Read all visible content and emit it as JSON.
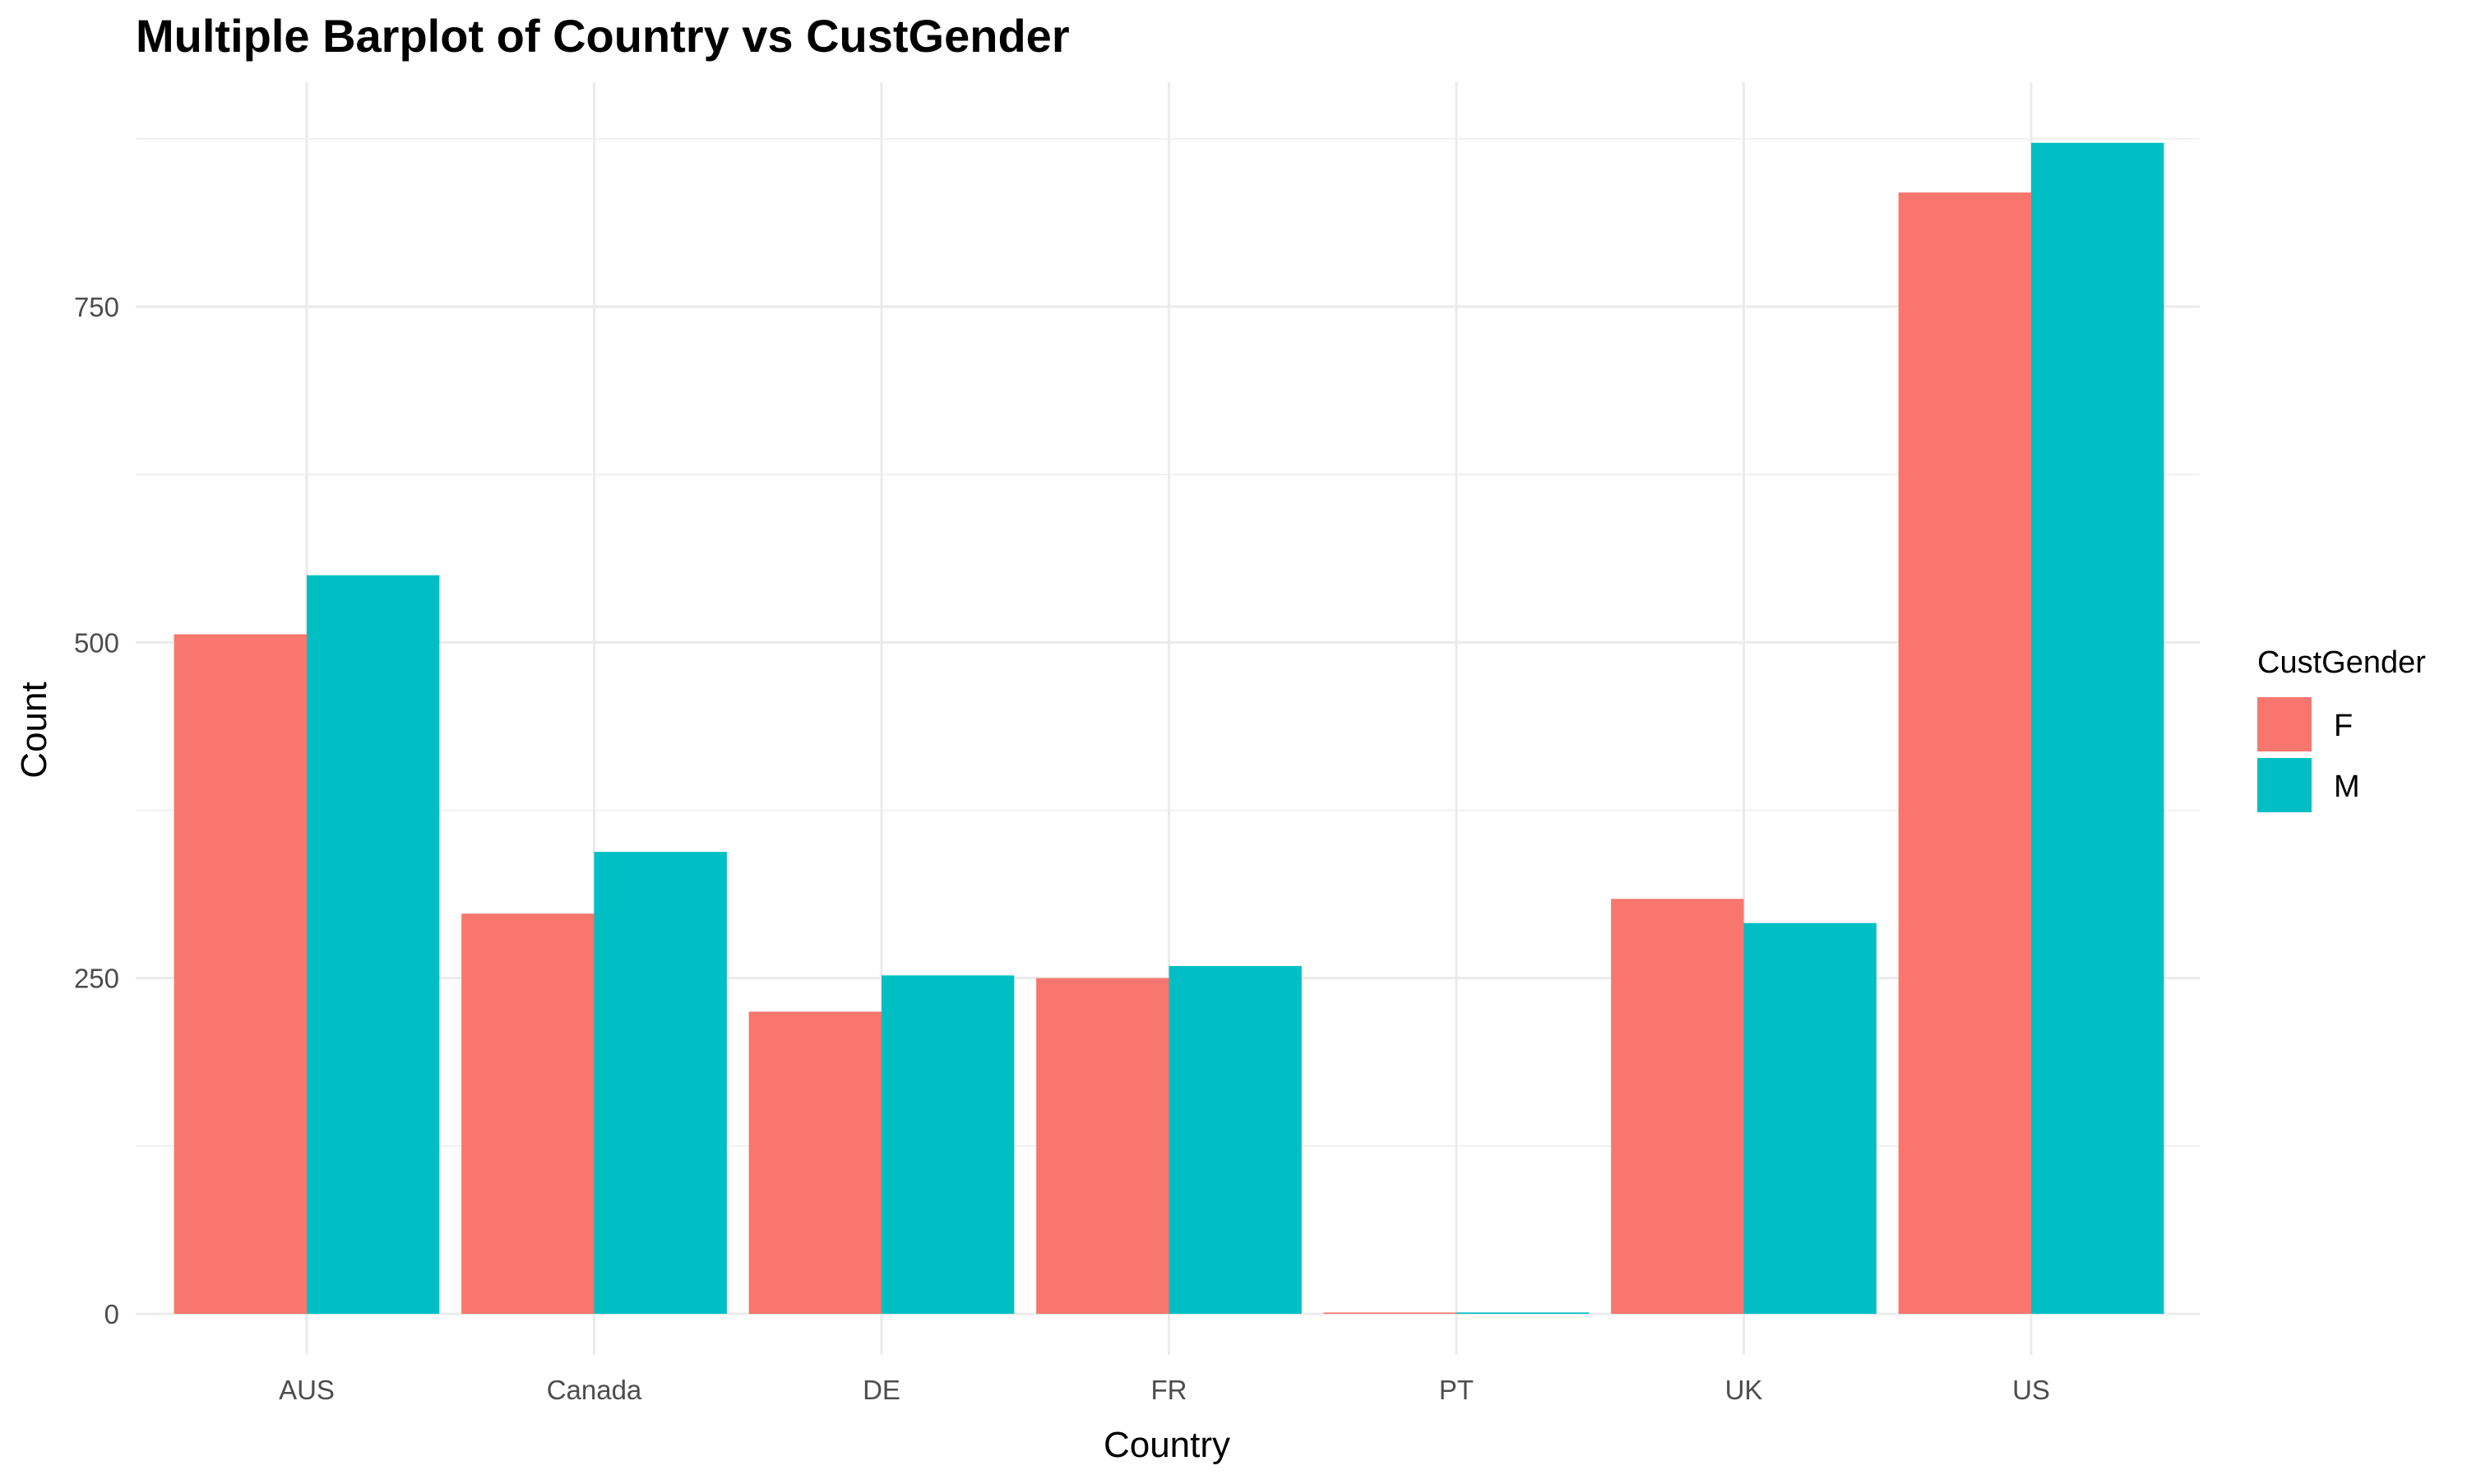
{
  "chart_data": {
    "type": "bar",
    "title": "Multiple Barplot of Country vs CustGender",
    "xlabel": "Country",
    "ylabel": "Count",
    "categories": [
      "AUS",
      "Canada",
      "DE",
      "FR",
      "PT",
      "UK",
      "US"
    ],
    "series": [
      {
        "name": "F",
        "color": "#F8766D",
        "values": [
          506,
          298,
          225,
          250,
          1,
          309,
          835
        ]
      },
      {
        "name": "M",
        "color": "#00BFC4",
        "values": [
          550,
          344,
          252,
          259,
          1,
          291,
          872
        ]
      }
    ],
    "ylim": [
      0,
      880
    ],
    "yticks": [
      0,
      250,
      500,
      750
    ],
    "grid": true,
    "legend": {
      "title": "CustGender",
      "position": "right"
    }
  }
}
